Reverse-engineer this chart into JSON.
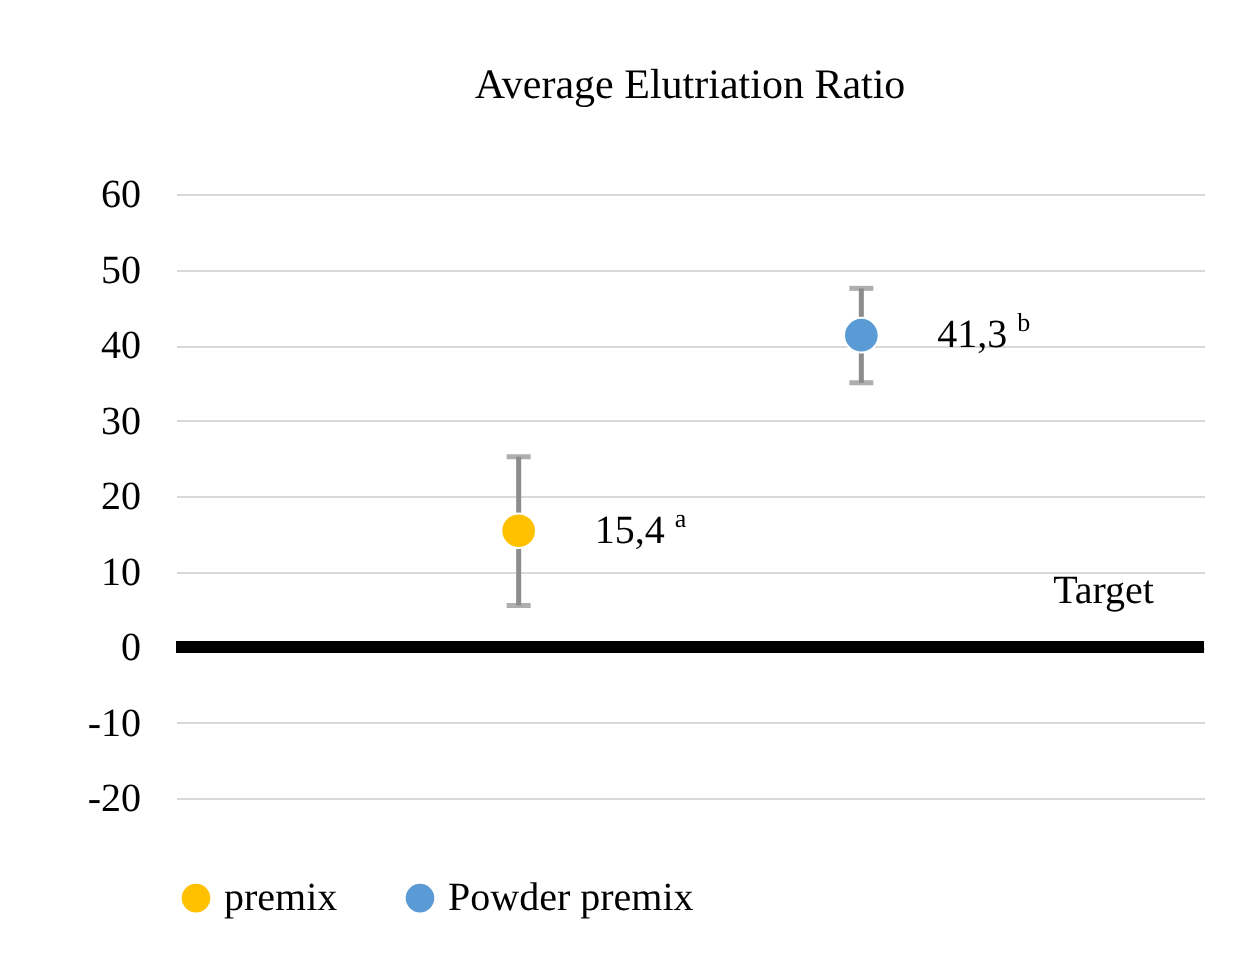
{
  "chart_data": {
    "type": "scatter",
    "title": "Average Elutriation Ratio",
    "categories": [
      null,
      null
    ],
    "series": [
      {
        "name": "premix",
        "color": "#ffc000",
        "values": [
          15.4,
          null
        ],
        "errors": [
          [
            5.5,
            25.2
          ],
          null
        ],
        "value_labels": [
          "15,4$^{a}$",
          null
        ]
      },
      {
        "name": "Powder premix",
        "color": "#5b9bd5",
        "values": [
          null,
          41.3
        ],
        "errors": [
          null,
          [
            35,
            47.5
          ]
        ],
        "value_labels": [
          null,
          "41,3$^{b}$"
        ]
      }
    ],
    "ylim": [
      -20,
      60
    ],
    "yticks": [
      -20,
      -10,
      0,
      10,
      20,
      30,
      40,
      50,
      60
    ],
    "grid": "y",
    "legend": "bottom",
    "marker": "circle",
    "tick_labels": "y",
    "ref_lines": [
      {
        "axis": "y",
        "value": 0,
        "label": "Target",
        "color": "#000000"
      }
    ]
  }
}
